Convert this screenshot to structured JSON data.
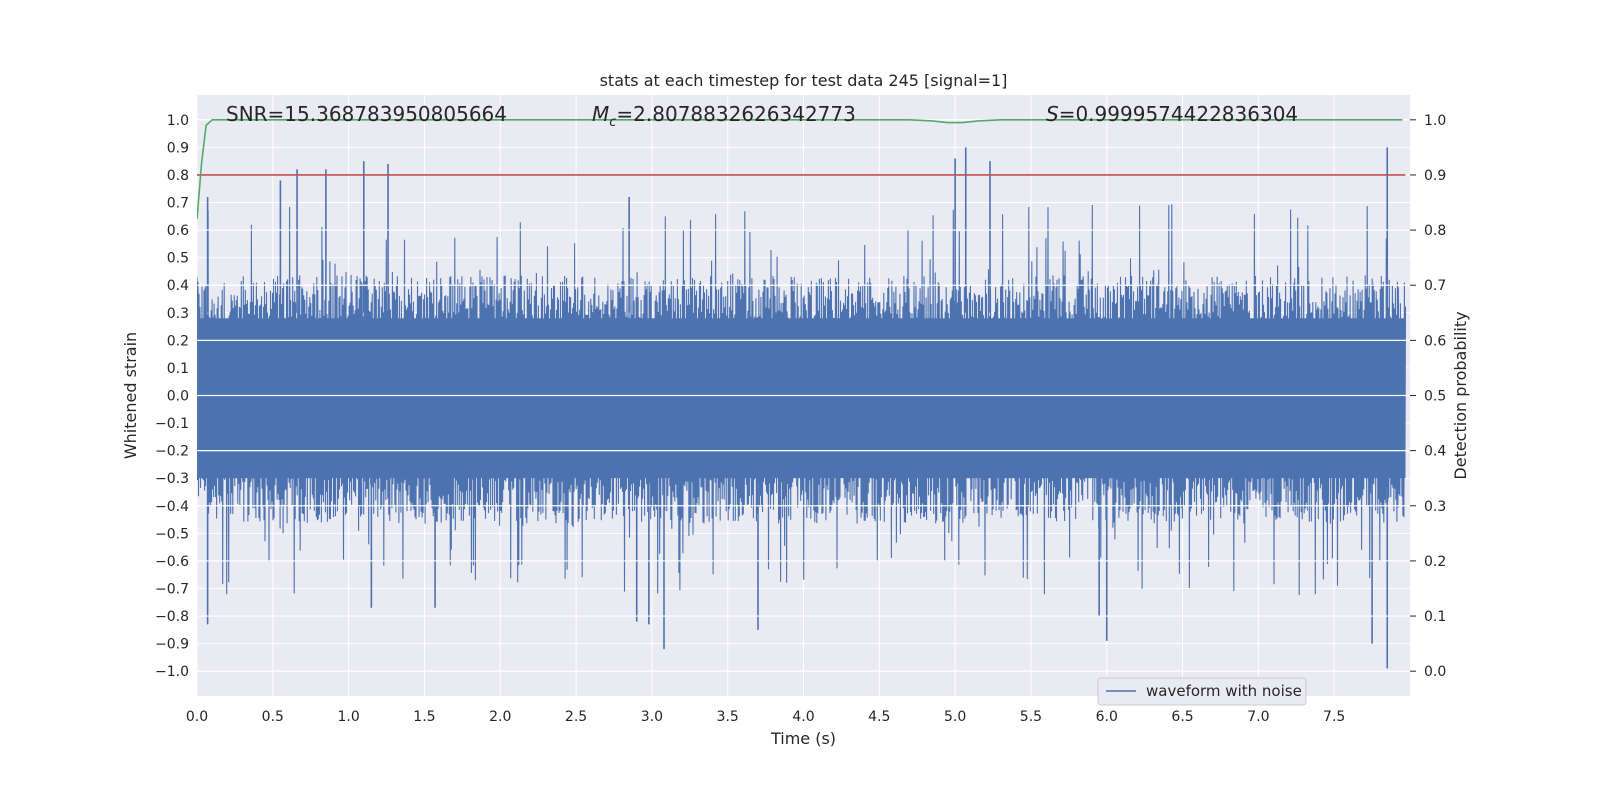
{
  "chart_data": {
    "type": "line",
    "title": "stats at each timestep for test data 245 [signal=1]",
    "xlabel": "Time (s)",
    "ylabel": "Whitened strain",
    "ylabel_right": "Detection probability",
    "xlim": [
      0.0,
      8.0
    ],
    "ylim": [
      -1.09,
      1.09
    ],
    "ylim_right": [
      -0.045,
      1.045
    ],
    "x_ticks": [
      "0.0",
      "0.5",
      "1.0",
      "1.5",
      "2.0",
      "2.5",
      "3.0",
      "3.5",
      "4.0",
      "4.5",
      "5.0",
      "5.5",
      "6.0",
      "6.5",
      "7.0",
      "7.5"
    ],
    "y_ticks": [
      "1.0",
      "0.9",
      "0.8",
      "0.7",
      "0.6",
      "0.5",
      "0.4",
      "0.3",
      "0.2",
      "0.1",
      "0.0",
      "−0.1",
      "−0.2",
      "−0.3",
      "−0.4",
      "−0.5",
      "−0.6",
      "−0.7",
      "−0.8",
      "−0.9",
      "−1.0"
    ],
    "y_right_ticks": [
      "1.0",
      "0.9",
      "0.8",
      "0.7",
      "0.6",
      "0.5",
      "0.4",
      "0.3",
      "0.2",
      "0.1",
      "0.0"
    ],
    "grid": true,
    "legend_position": "lower-right",
    "annotations": {
      "snr": "SNR=15.368783950805664",
      "mc_symbol": "M",
      "mc_subscript": "c",
      "mc_value": "=2.8078832626342773",
      "s_symbol": "S",
      "s_value": "=0.9999574422836304"
    },
    "series": [
      {
        "name": "waveform with noise",
        "axis": "left",
        "color": "#4c72b0",
        "x_range": [
          0.0,
          7.97
        ],
        "envelope_upper_typical": 0.45,
        "envelope_lower_typical": -0.48,
        "peaks_upper": [
          [
            0.07,
            0.72
          ],
          [
            0.55,
            0.78
          ],
          [
            0.66,
            0.82
          ],
          [
            0.85,
            0.82
          ],
          [
            1.1,
            0.85
          ],
          [
            1.26,
            0.84
          ],
          [
            2.85,
            0.72
          ],
          [
            5.0,
            0.86
          ],
          [
            5.07,
            0.9
          ],
          [
            5.23,
            0.85
          ],
          [
            7.85,
            0.9
          ]
        ],
        "peaks_lower": [
          [
            0.07,
            -0.83
          ],
          [
            1.15,
            -0.77
          ],
          [
            1.57,
            -0.77
          ],
          [
            2.9,
            -0.82
          ],
          [
            2.98,
            -0.83
          ],
          [
            3.08,
            -0.92
          ],
          [
            3.7,
            -0.85
          ],
          [
            5.95,
            -0.8
          ],
          [
            6.0,
            -0.89
          ],
          [
            7.75,
            -0.9
          ],
          [
            7.85,
            -0.99
          ]
        ]
      },
      {
        "name": "",
        "axis": "right",
        "color": "#55a868",
        "points": [
          [
            0.0,
            0.82
          ],
          [
            0.03,
            0.92
          ],
          [
            0.06,
            0.99
          ],
          [
            0.1,
            1.0
          ],
          [
            0.15,
            1.0
          ],
          [
            1.0,
            1.0
          ],
          [
            2.0,
            1.0
          ],
          [
            3.0,
            1.0
          ],
          [
            4.0,
            1.0
          ],
          [
            4.7,
            1.0
          ],
          [
            4.85,
            0.998
          ],
          [
            4.95,
            0.995
          ],
          [
            5.05,
            0.995
          ],
          [
            5.15,
            0.998
          ],
          [
            5.3,
            1.0
          ],
          [
            6.0,
            1.0
          ],
          [
            7.0,
            1.0
          ],
          [
            7.95,
            1.0
          ]
        ]
      },
      {
        "name": "",
        "axis": "right",
        "color": "#c44e52",
        "points": [
          [
            0.0,
            0.9
          ],
          [
            7.97,
            0.9
          ]
        ]
      }
    ]
  }
}
